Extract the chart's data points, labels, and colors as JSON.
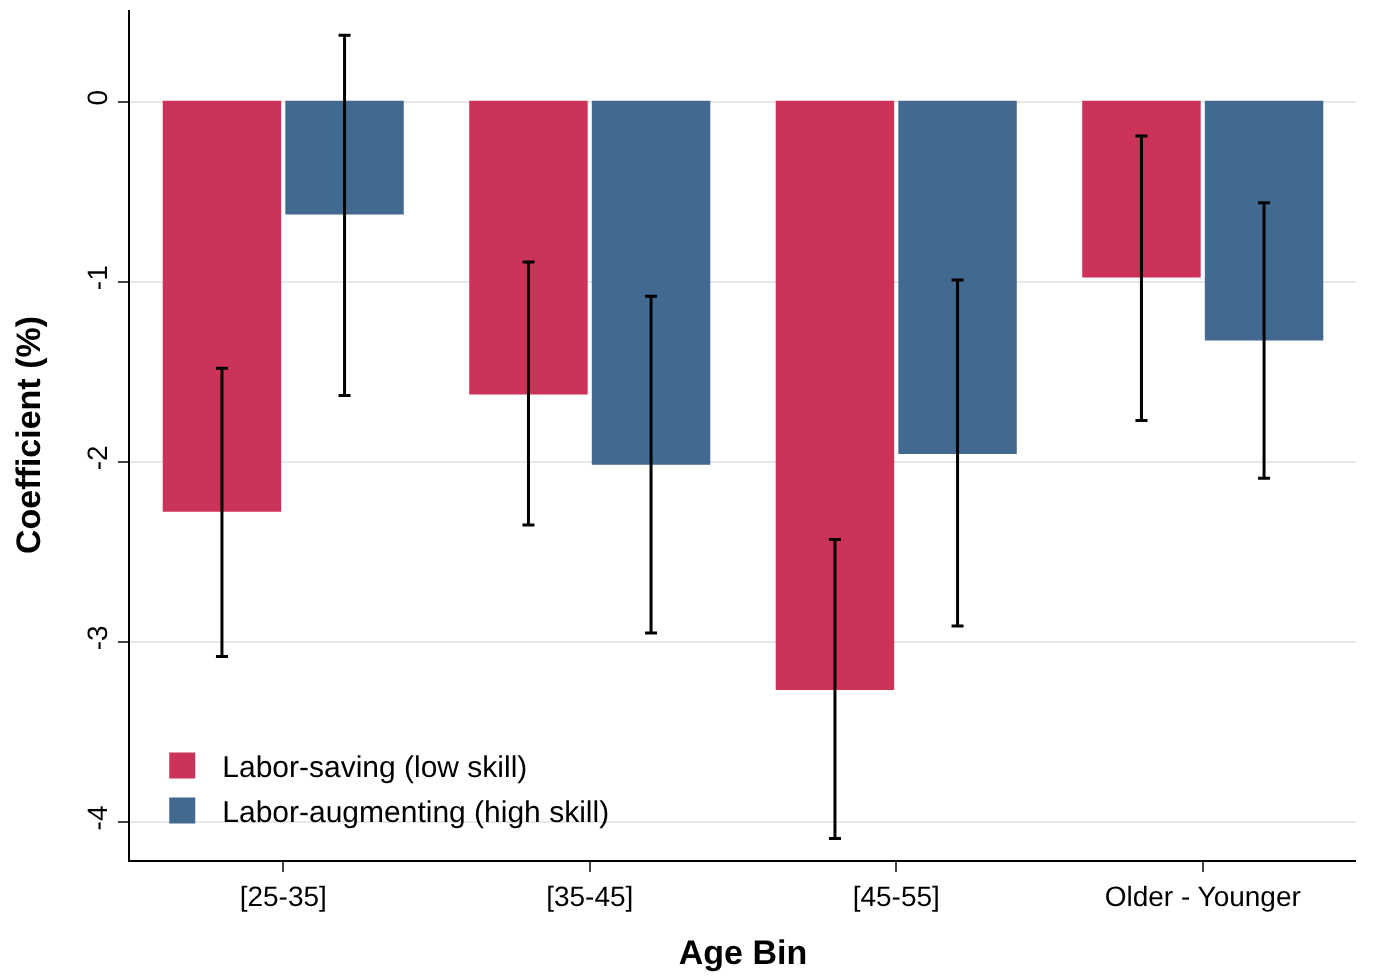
{
  "chart_data": {
    "type": "bar",
    "xlabel": "Age Bin",
    "ylabel": "Coefficient (%)",
    "categories": [
      "[25-35]",
      "[35-45]",
      "[45-55]",
      "Older - Younger"
    ],
    "series": [
      {
        "name": "Labor-saving (low skill)",
        "color": "#cc3358",
        "values": [
          -2.27,
          -1.62,
          -3.26,
          -0.97
        ],
        "errors": [
          [
            -3.08,
            -1.48
          ],
          [
            -2.35,
            -0.89
          ],
          [
            -4.09,
            -2.43
          ],
          [
            -1.77,
            -0.19
          ]
        ]
      },
      {
        "name": "Labor-augmenting (high skill)",
        "color": "#426990",
        "values": [
          -0.62,
          -2.01,
          -1.95,
          -1.32
        ],
        "errors": [
          [
            -1.63,
            0.37
          ],
          [
            -2.95,
            -1.08
          ],
          [
            -2.91,
            -0.99
          ],
          [
            -2.09,
            -0.56
          ]
        ]
      }
    ],
    "ylim": [
      -4.21,
      0.51
    ],
    "yticks": [
      -4,
      -3,
      -2,
      -1,
      0
    ],
    "grid": "y",
    "legend": "bottom left"
  }
}
